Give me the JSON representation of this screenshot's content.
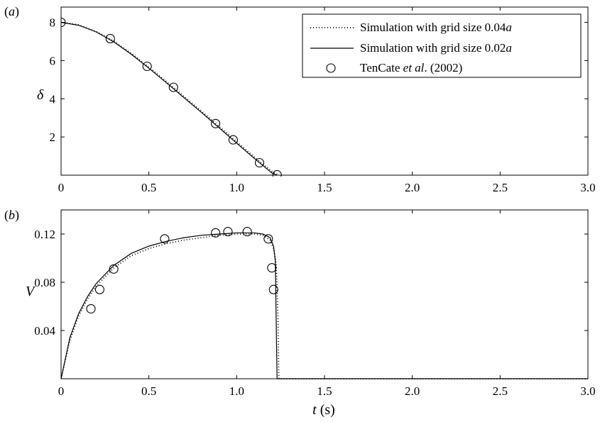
{
  "chart_data": [
    {
      "panel_label": "(a)",
      "type": "line",
      "xlabel": "",
      "ylabel": "δ",
      "xlim": [
        0,
        3.0
      ],
      "ylim": [
        0,
        8.8
      ],
      "x_ticks": [
        0,
        0.5,
        1.0,
        1.5,
        2.0,
        2.5,
        3.0
      ],
      "x_tick_labels": [
        "0",
        "0.5",
        "1.0",
        "1.5",
        "2.0",
        "2.5",
        "3.0"
      ],
      "y_ticks": [
        2,
        4,
        6,
        8
      ],
      "y_tick_labels": [
        "2",
        "4",
        "6",
        "8"
      ],
      "grid": false,
      "legend_position": "top-right",
      "legend": [
        {
          "text_plain": "Simulation with grid size 0.04",
          "text_italic": "a",
          "style": "dotted"
        },
        {
          "text_plain": "Simulation with grid size 0.02",
          "text_italic": "a",
          "style": "solid"
        },
        {
          "text_plain_before": "TenCate ",
          "text_italic": "et al",
          "text_plain_after": ". (2002)",
          "style": "marker"
        }
      ],
      "series": [
        {
          "style": "dotted",
          "x": [
            0.0,
            0.1,
            0.2,
            0.3,
            0.4,
            0.5,
            0.6,
            0.7,
            0.8,
            0.9,
            1.0,
            1.1,
            1.2,
            1.235
          ],
          "y": [
            8.0,
            7.87,
            7.52,
            7.02,
            6.38,
            5.65,
            4.9,
            4.12,
            3.35,
            2.55,
            1.75,
            0.95,
            0.2,
            0.0
          ]
        },
        {
          "style": "solid",
          "x": [
            0.0,
            0.1,
            0.2,
            0.3,
            0.4,
            0.5,
            0.6,
            0.7,
            0.8,
            0.9,
            1.0,
            1.1,
            1.2,
            1.23
          ],
          "y": [
            8.0,
            7.85,
            7.5,
            6.98,
            6.33,
            5.6,
            4.84,
            4.06,
            3.28,
            2.48,
            1.68,
            0.88,
            0.12,
            0.0
          ]
        },
        {
          "style": "marker",
          "x": [
            0.0,
            0.28,
            0.49,
            0.64,
            0.88,
            0.98,
            1.13,
            1.23
          ],
          "y": [
            8.0,
            7.15,
            5.7,
            4.6,
            2.7,
            1.85,
            0.65,
            0.02
          ]
        }
      ]
    },
    {
      "panel_label": "(b)",
      "type": "line",
      "xlabel": "t (s)",
      "ylabel": "V",
      "xlim": [
        0,
        3.0
      ],
      "ylim": [
        0,
        0.14
      ],
      "x_ticks": [
        0,
        0.5,
        1.0,
        1.5,
        2.0,
        2.5,
        3.0
      ],
      "x_tick_labels": [
        "0",
        "0.5",
        "1.0",
        "1.5",
        "2.0",
        "2.5",
        "3.0"
      ],
      "y_ticks": [
        0.04,
        0.08,
        0.12
      ],
      "y_tick_labels": [
        "0.04",
        "0.08",
        "0.12"
      ],
      "grid": false,
      "series": [
        {
          "style": "dotted",
          "x": [
            0.0,
            0.05,
            0.1,
            0.15,
            0.2,
            0.3,
            0.4,
            0.5,
            0.6,
            0.7,
            0.8,
            0.9,
            1.0,
            1.1,
            1.15,
            1.19,
            1.21,
            1.225,
            1.235,
            1.24,
            3.0
          ],
          "y": [
            0.0,
            0.032,
            0.052,
            0.066,
            0.077,
            0.092,
            0.102,
            0.108,
            0.112,
            0.115,
            0.117,
            0.119,
            0.12,
            0.12,
            0.119,
            0.115,
            0.108,
            0.095,
            0.05,
            0.0,
            0.0
          ]
        },
        {
          "style": "solid",
          "x": [
            0.0,
            0.05,
            0.1,
            0.15,
            0.2,
            0.3,
            0.4,
            0.5,
            0.6,
            0.7,
            0.8,
            0.9,
            1.0,
            1.1,
            1.15,
            1.19,
            1.21,
            1.22,
            1.23,
            3.0
          ],
          "y": [
            0.0,
            0.034,
            0.054,
            0.068,
            0.079,
            0.094,
            0.104,
            0.11,
            0.114,
            0.117,
            0.119,
            0.12,
            0.121,
            0.121,
            0.12,
            0.117,
            0.11,
            0.098,
            0.0,
            0.0
          ]
        },
        {
          "style": "marker",
          "x": [
            0.17,
            0.22,
            0.3,
            0.59,
            0.88,
            0.95,
            1.06,
            1.18,
            1.2,
            1.21
          ],
          "y": [
            0.058,
            0.074,
            0.091,
            0.116,
            0.121,
            0.122,
            0.122,
            0.116,
            0.092,
            0.074
          ]
        }
      ]
    }
  ]
}
